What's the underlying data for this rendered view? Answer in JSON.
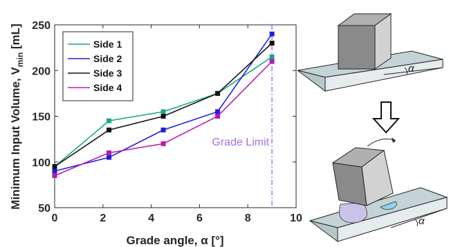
{
  "chart_data": {
    "type": "line",
    "xlabel": "Grade angle, α [°]",
    "ylabel_main": "Minimum Input Volume, V",
    "ylabel_sub": "min",
    "ylabel_unit": " [mL]",
    "xlim": [
      0,
      10
    ],
    "ylim": [
      50,
      250
    ],
    "xticks": [
      0,
      2,
      4,
      6,
      8,
      10
    ],
    "yticks": [
      50,
      100,
      150,
      200,
      250
    ],
    "grid": false,
    "legend_position": "top-left",
    "x": [
      0,
      2.25,
      4.5,
      6.75,
      9
    ],
    "series": [
      {
        "name": "Side 1",
        "color": "#1aa68a",
        "values": [
          95,
          145,
          155,
          175,
          215
        ]
      },
      {
        "name": "Side 2",
        "color": "#1f1fe0",
        "values": [
          90,
          105,
          135,
          155,
          240
        ]
      },
      {
        "name": "Side 3",
        "color": "#111111",
        "values": [
          95,
          135,
          150,
          175,
          230
        ]
      },
      {
        "name": "Side 4",
        "color": "#b51ab5",
        "values": [
          85,
          110,
          120,
          150,
          210
        ]
      }
    ],
    "annotations": [
      {
        "text": "Grade Limit",
        "x": 9,
        "color": "#a66ee8",
        "style": "vertical dash-dot line"
      }
    ]
  },
  "illustration": {
    "top_label": "α",
    "bottom_label": "α",
    "arrow": "down-arrow-icon",
    "colors": {
      "ramp": "#c3d3d6",
      "block_front": "#8a8a8a",
      "block_side": "#d2d2d2",
      "block_top": "#b0b0b0",
      "droplet_left": "#c9c3ea",
      "droplet_right": "#8fd3ec"
    }
  }
}
